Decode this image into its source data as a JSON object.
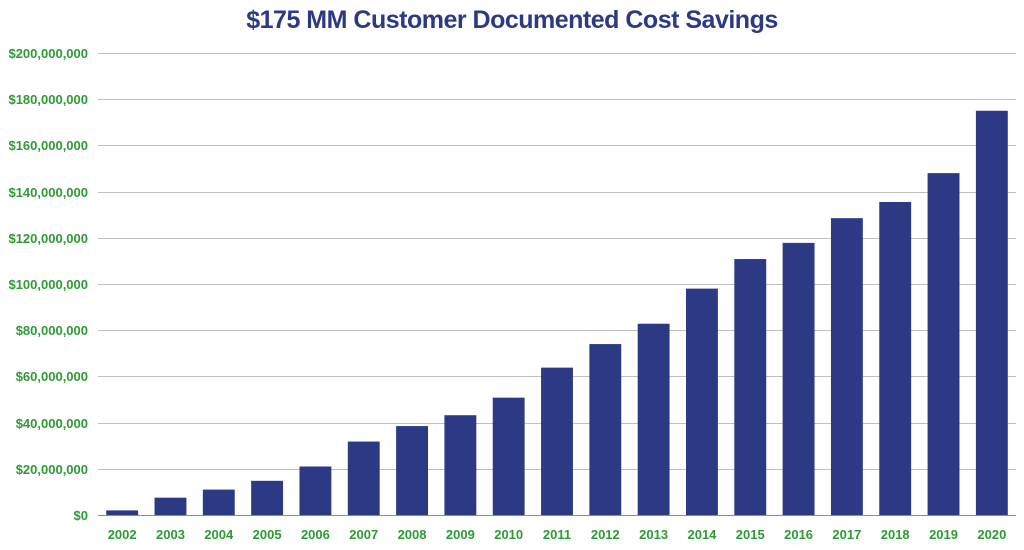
{
  "colors": {
    "title": "#2c3a86",
    "bar": "#2c3a86",
    "tick_label": "#2e9a35",
    "gridline": "#bfbfbf",
    "axis": "#8c8c8c"
  },
  "chart_data": {
    "type": "bar",
    "title": "$175 MM Customer Documented Cost Savings",
    "xlabel": "",
    "ylabel": "",
    "ylim": [
      0,
      200000000
    ],
    "grid": true,
    "legend": "none",
    "categories": [
      "2002",
      "2003",
      "2004",
      "2005",
      "2006",
      "2007",
      "2008",
      "2009",
      "2010",
      "2011",
      "2012",
      "2013",
      "2014",
      "2015",
      "2016",
      "2017",
      "2018",
      "2019",
      "2020"
    ],
    "values": [
      2000000,
      7500000,
      11000000,
      14800000,
      21000000,
      31800000,
      38500000,
      43200000,
      50800000,
      63800000,
      74000000,
      82800000,
      98000000,
      110800000,
      117800000,
      128500000,
      135500000,
      148000000,
      175000000
    ],
    "y_ticks": [
      0,
      20000000,
      40000000,
      60000000,
      80000000,
      100000000,
      120000000,
      140000000,
      160000000,
      180000000,
      200000000
    ],
    "y_tick_labels": [
      "$0",
      "$20,000,000",
      "$40,000,000",
      "$60,000,000",
      "$80,000,000",
      "$100,000,000",
      "$120,000,000",
      "$140,000,000",
      "$160,000,000",
      "$180,000,000",
      "$200,000,000"
    ]
  }
}
